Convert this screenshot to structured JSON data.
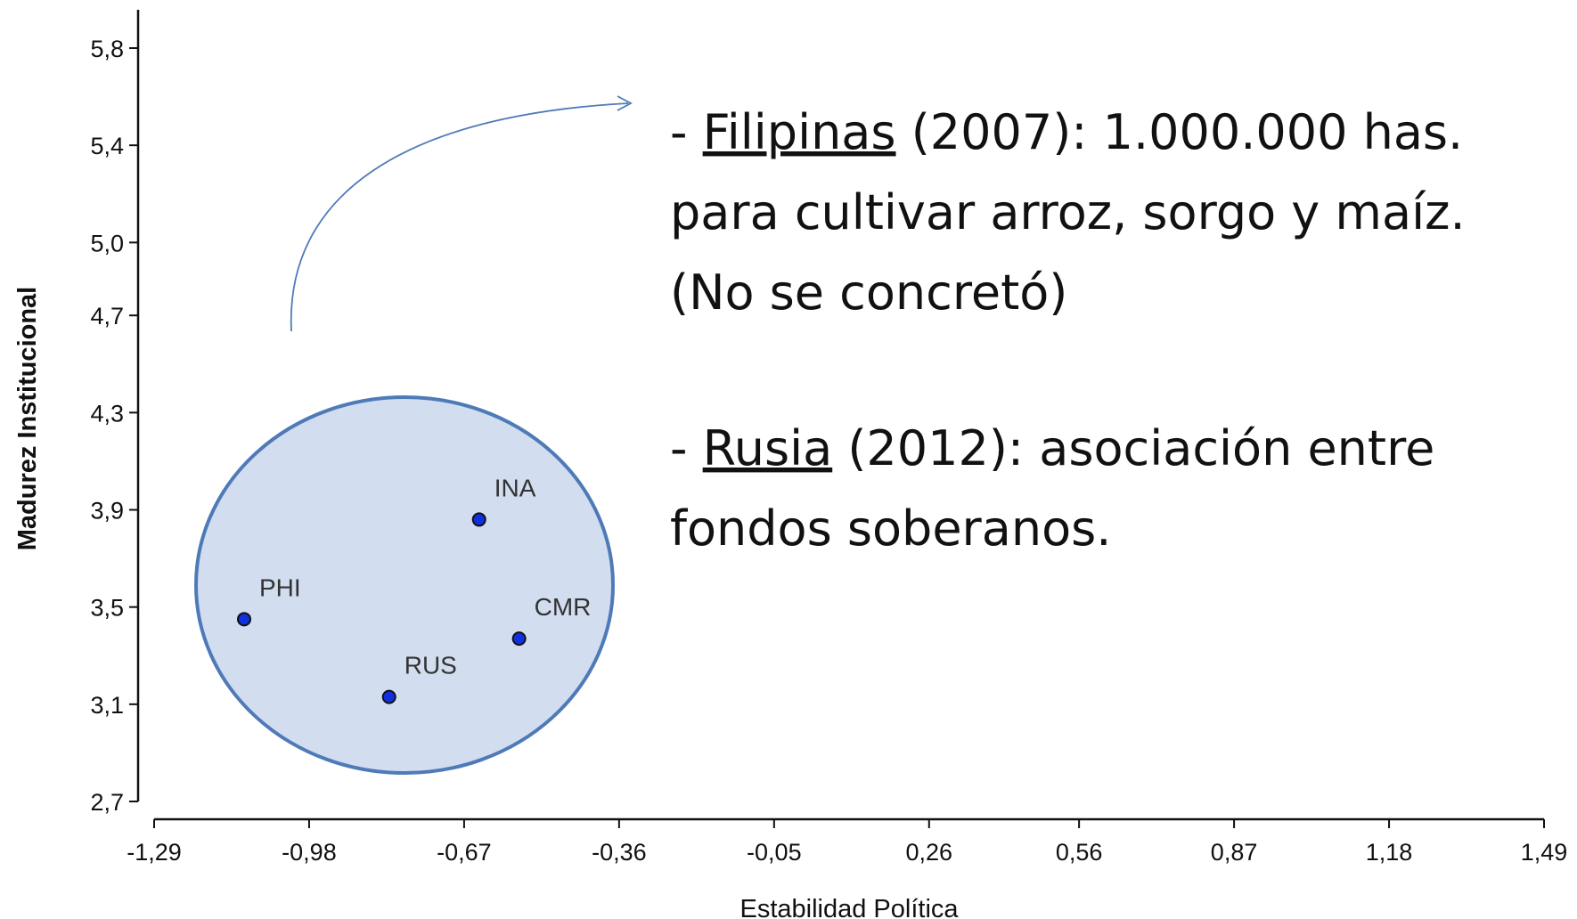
{
  "chart_data": {
    "type": "scatter",
    "xlabel": "Estabilidad Política",
    "ylabel": "Madurez Institucional",
    "x": [
      -1.11,
      -0.64,
      -0.56,
      -0.82
    ],
    "values": [
      3.45,
      3.86,
      3.37,
      3.13
    ],
    "point_labels": [
      "PHI",
      "INA",
      "CMR",
      "RUS"
    ],
    "color": "#1030e0",
    "xlim": [
      -1.29,
      1.49
    ],
    "xticks": [
      {
        "value": -1.29,
        "label": "-1,29"
      },
      {
        "value": -0.98,
        "label": "-0,98"
      },
      {
        "value": -0.67,
        "label": "-0,67"
      },
      {
        "value": -0.36,
        "label": "-0,36"
      },
      {
        "value": -0.05,
        "label": "-0,05"
      },
      {
        "value": 0.26,
        "label": "0,26"
      },
      {
        "value": 0.56,
        "label": "0,56"
      },
      {
        "value": 0.87,
        "label": "0,87"
      },
      {
        "value": 1.18,
        "label": "1,18"
      },
      {
        "value": 1.49,
        "label": "1,49"
      }
    ],
    "ylim": [
      2.7,
      5.8
    ],
    "yticks": [
      {
        "value": 2.7,
        "label": "2,7"
      },
      {
        "value": 3.1,
        "label": "3,1"
      },
      {
        "value": 3.5,
        "label": "3,5"
      },
      {
        "value": 3.9,
        "label": "3,9"
      },
      {
        "value": 4.3,
        "label": "4,3"
      },
      {
        "value": 4.7,
        "label": "4,7"
      },
      {
        "value": 5.0,
        "label": "5,0"
      },
      {
        "value": 5.4,
        "label": "5,4"
      },
      {
        "value": 5.8,
        "label": "5,8"
      }
    ],
    "annotations": [
      {
        "lines": [
          [
            "- ",
            "Filipinas",
            " (2007): 1.000.000 has."
          ],
          [
            "para cultivar arroz, sorgo y maíz."
          ],
          [
            "(No se concretó)"
          ]
        ]
      },
      {
        "lines": [
          [
            "- ",
            "Rusia",
            " (2012): asociación entre"
          ],
          [
            "fondos soberanos."
          ]
        ]
      }
    ]
  }
}
